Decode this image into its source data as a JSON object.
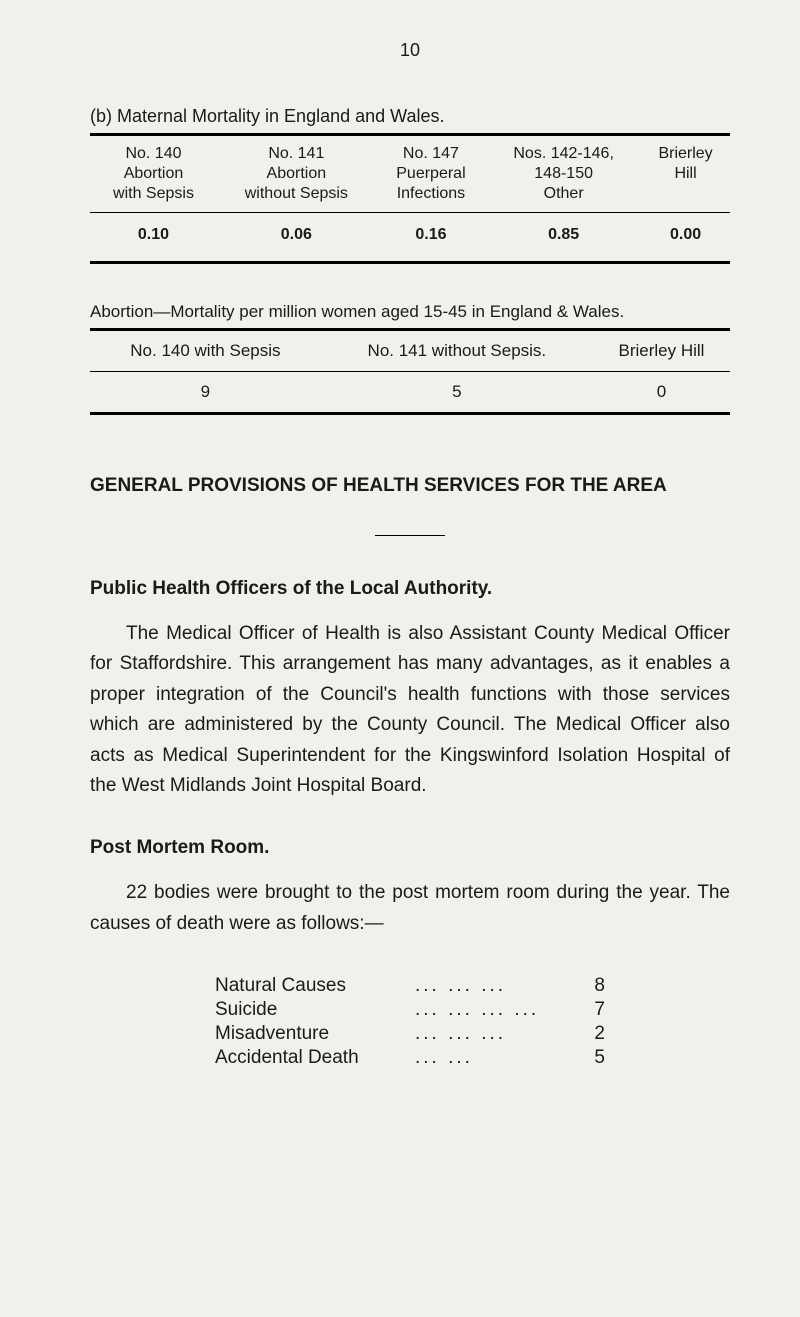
{
  "page_number": "10",
  "section_b": "(b)   Maternal Mortality in England and Wales.",
  "table1": {
    "type": "table",
    "columns": [
      {
        "line1": "No. 140",
        "line2": "Abortion",
        "line3": "with Sepsis"
      },
      {
        "line1": "No. 141",
        "line2": "Abortion",
        "line3": "without Sepsis"
      },
      {
        "line1": "No. 147",
        "line2": "Puerperal",
        "line3": "Infections"
      },
      {
        "line1": "Nos. 142-146,",
        "line2": "148-150",
        "line3": "Other"
      },
      {
        "line1": "Brierley",
        "line2": "Hill",
        "line3": ""
      }
    ],
    "row": [
      "0.10",
      "0.06",
      "0.16",
      "0.85",
      "0.00"
    ]
  },
  "table2_lead": "Abortion—Mortality per million women aged 15-45 in England & Wales.",
  "table2": {
    "type": "table",
    "columns": [
      "No. 140 with Sepsis",
      "No. 141 without Sepsis.",
      "Brierley Hill"
    ],
    "row": [
      "9",
      "5",
      "0"
    ]
  },
  "main_heading": "GENERAL PROVISIONS OF HEALTH SERVICES FOR THE AREA",
  "public_health": {
    "heading": "Public Health Officers of the Local Authority.",
    "body": "The Medical Officer of Health is also Assistant County Medical Officer for Staffordshire. This arrangement has many advantages, as it enables a proper integration of the Council's health functions with those services which are administered by the County Council. The Medical Officer also acts as Medical Superintendent for the Kingswinford Isolation Hospital of the West Midlands Joint Hospital Board."
  },
  "post_mortem": {
    "heading": "Post Mortem Room.",
    "body": "22 bodies were brought to the post mortem room during the year. The causes of death were as follows:—",
    "causes": [
      {
        "label": "Natural Causes",
        "dots": "...    ...    ...",
        "value": "8"
      },
      {
        "label": "Suicide",
        "dots": "...    ...    ...    ...",
        "value": "7"
      },
      {
        "label": "Misadventure",
        "dots": "...    ...    ...",
        "value": "2"
      },
      {
        "label": "Accidental Death",
        "dots": "...    ...",
        "value": "5"
      }
    ]
  },
  "colors": {
    "background": "#f2f0ea",
    "text": "#1a1a1a",
    "rule": "#000000"
  }
}
